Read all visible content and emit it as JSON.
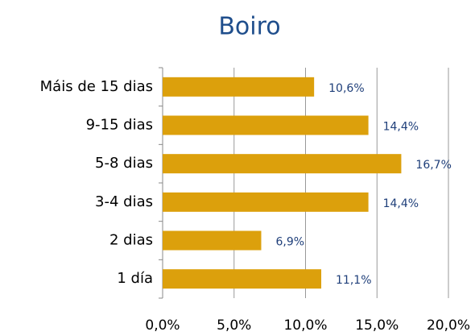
{
  "chart_data": {
    "type": "barh",
    "title": "Boiro",
    "categories": [
      "Máis de 15 dias",
      "9-15 dias",
      "5-8 dias",
      "3-4 dias",
      "2 dias",
      "1 día"
    ],
    "values": [
      10.6,
      14.4,
      16.7,
      14.4,
      6.9,
      11.1
    ],
    "value_labels": [
      "10,6%",
      "14,4%",
      "16,7%",
      "14,4%",
      "6,9%",
      "11,1%"
    ],
    "color": "#dca00c",
    "xlim": [
      0,
      20
    ],
    "xticks": [
      {
        "value": 0,
        "label": "0,0%"
      },
      {
        "value": 5,
        "label": "5,0%"
      },
      {
        "value": 10,
        "label": "10,0%"
      },
      {
        "value": 15,
        "label": "15,0%"
      },
      {
        "value": 20,
        "label": "20,0%"
      }
    ],
    "grid": true
  }
}
